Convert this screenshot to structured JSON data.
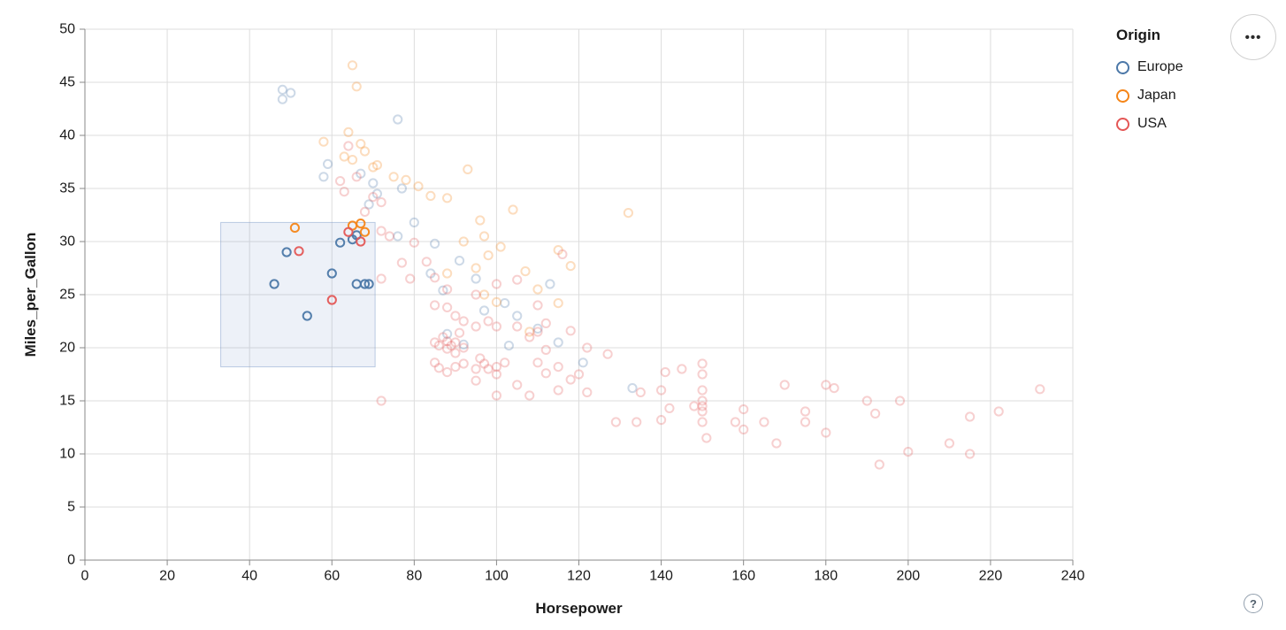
{
  "ui": {
    "menu_icon": "•••",
    "help_icon": "?"
  },
  "chart_data": {
    "type": "scatter",
    "title": "",
    "xlabel": "Horsepower",
    "ylabel": "Miles_per_Gallon",
    "xlim": [
      0,
      240
    ],
    "ylim": [
      0,
      50
    ],
    "xticks": [
      0,
      20,
      40,
      60,
      80,
      100,
      120,
      140,
      160,
      180,
      200,
      220,
      240
    ],
    "yticks": [
      0,
      5,
      10,
      15,
      20,
      25,
      30,
      35,
      40,
      45,
      50
    ],
    "grid": true,
    "point_style": {
      "shape": "open-circle",
      "radius": 4.6,
      "stroke_width": 2,
      "faded_opacity": 0.28,
      "selected_opacity": 0.95
    },
    "legend": {
      "title": "Origin",
      "position": "top-right",
      "entries": [
        {
          "label": "Europe",
          "color": "#4c78a8"
        },
        {
          "label": "Japan",
          "color": "#f58518"
        },
        {
          "label": "USA",
          "color": "#e45756"
        }
      ]
    },
    "brush": {
      "x": [
        33,
        70.5
      ],
      "y": [
        18.2,
        31.8
      ],
      "fill": "#6a8fc8",
      "fill_opacity": 0.12,
      "stroke": "#7d9bc9",
      "stroke_opacity": 0.5
    },
    "series": [
      {
        "name": "Europe",
        "color": "#4c78a8",
        "selected": [
          [
            46,
            26
          ],
          [
            49,
            29
          ],
          [
            54,
            23
          ],
          [
            60,
            27
          ],
          [
            62,
            29.9
          ],
          [
            65,
            30.2
          ],
          [
            66,
            30.6
          ],
          [
            66,
            26
          ],
          [
            68,
            26
          ],
          [
            69,
            26
          ]
        ],
        "unselected": [
          [
            48,
            44.3
          ],
          [
            48,
            43.4
          ],
          [
            50,
            44
          ],
          [
            76,
            41.5
          ],
          [
            58,
            36.1
          ],
          [
            59,
            37.3
          ],
          [
            67,
            36.4
          ],
          [
            70,
            35.5
          ],
          [
            71,
            34.5
          ],
          [
            69,
            33.5
          ],
          [
            77,
            35
          ],
          [
            80,
            31.8
          ],
          [
            85,
            29.8
          ],
          [
            91,
            28.2
          ],
          [
            95,
            26.5
          ],
          [
            113,
            26
          ],
          [
            97,
            23.5
          ],
          [
            102,
            24.2
          ],
          [
            105,
            23
          ],
          [
            110,
            21.8
          ],
          [
            115,
            20.5
          ],
          [
            103,
            20.2
          ],
          [
            88,
            21.3
          ],
          [
            92,
            20.3
          ],
          [
            121,
            18.6
          ],
          [
            133,
            16.2
          ],
          [
            87,
            25.4
          ],
          [
            76,
            30.5
          ],
          [
            84,
            27
          ]
        ]
      },
      {
        "name": "Japan",
        "color": "#f58518",
        "selected": [
          [
            51,
            31.3
          ],
          [
            65,
            31.5
          ],
          [
            67,
            31.7
          ],
          [
            68,
            30.9
          ]
        ],
        "unselected": [
          [
            65,
            46.6
          ],
          [
            66,
            44.6
          ],
          [
            58,
            39.4
          ],
          [
            64,
            40.3
          ],
          [
            67,
            39.2
          ],
          [
            63,
            38
          ],
          [
            65,
            37.7
          ],
          [
            68,
            38.5
          ],
          [
            70,
            37
          ],
          [
            71,
            37.2
          ],
          [
            75,
            36.1
          ],
          [
            78,
            35.8
          ],
          [
            81,
            35.2
          ],
          [
            84,
            34.3
          ],
          [
            88,
            34.1
          ],
          [
            93,
            36.8
          ],
          [
            104,
            33
          ],
          [
            96,
            32
          ],
          [
            97,
            30.5
          ],
          [
            92,
            30
          ],
          [
            101,
            29.5
          ],
          [
            98,
            28.7
          ],
          [
            95,
            27.5
          ],
          [
            107,
            27.2
          ],
          [
            88,
            27
          ],
          [
            110,
            25.5
          ],
          [
            97,
            25
          ],
          [
            100,
            24.3
          ],
          [
            115,
            24.2
          ],
          [
            108,
            21.5
          ],
          [
            118,
            27.7
          ],
          [
            132,
            32.7
          ],
          [
            115,
            29.2
          ]
        ]
      },
      {
        "name": "USA",
        "color": "#e45756",
        "selected": [
          [
            52,
            29.1
          ],
          [
            60,
            24.5
          ],
          [
            64,
            30.9
          ],
          [
            67,
            30
          ]
        ],
        "unselected": [
          [
            64,
            39
          ],
          [
            62,
            35.7
          ],
          [
            63,
            34.7
          ],
          [
            66,
            36.1
          ],
          [
            70,
            34.2
          ],
          [
            72,
            33.7
          ],
          [
            68,
            32.8
          ],
          [
            72,
            31
          ],
          [
            74,
            30.5
          ],
          [
            77,
            28
          ],
          [
            79,
            26.5
          ],
          [
            80,
            29.9
          ],
          [
            83,
            28.1
          ],
          [
            85,
            26.6
          ],
          [
            72,
            26.5
          ],
          [
            72,
            15
          ],
          [
            85,
            24
          ],
          [
            88,
            23.8
          ],
          [
            90,
            23
          ],
          [
            92,
            22.5
          ],
          [
            95,
            22
          ],
          [
            98,
            22.5
          ],
          [
            100,
            22
          ],
          [
            88,
            25.5
          ],
          [
            95,
            25
          ],
          [
            100,
            26
          ],
          [
            105,
            26.4
          ],
          [
            85,
            20.5
          ],
          [
            86,
            20.2
          ],
          [
            87,
            21
          ],
          [
            88,
            19.9
          ],
          [
            88,
            20.6
          ],
          [
            89,
            20.2
          ],
          [
            90,
            20.5
          ],
          [
            90,
            19.5
          ],
          [
            91,
            21.4
          ],
          [
            92,
            20
          ],
          [
            85,
            18.6
          ],
          [
            86,
            18.1
          ],
          [
            88,
            17.7
          ],
          [
            90,
            18.2
          ],
          [
            92,
            18.5
          ],
          [
            95,
            18
          ],
          [
            96,
            19
          ],
          [
            97,
            18.5
          ],
          [
            98,
            18
          ],
          [
            100,
            18.2
          ],
          [
            100,
            17.5
          ],
          [
            102,
            18.6
          ],
          [
            95,
            16.9
          ],
          [
            100,
            15.5
          ],
          [
            105,
            22
          ],
          [
            108,
            21
          ],
          [
            110,
            21.5
          ],
          [
            112,
            19.8
          ],
          [
            110,
            18.6
          ],
          [
            115,
            18.2
          ],
          [
            112,
            17.6
          ],
          [
            118,
            17
          ],
          [
            105,
            16.5
          ],
          [
            108,
            15.5
          ],
          [
            115,
            16
          ],
          [
            122,
            15.8
          ],
          [
            120,
            17.5
          ],
          [
            110,
            24
          ],
          [
            112,
            22.3
          ],
          [
            118,
            21.6
          ],
          [
            122,
            20
          ],
          [
            127,
            19.4
          ],
          [
            116,
            28.8
          ],
          [
            129,
            13
          ],
          [
            134,
            13
          ],
          [
            140,
            13.2
          ],
          [
            135,
            15.8
          ],
          [
            141,
            17.7
          ],
          [
            145,
            18
          ],
          [
            140,
            16
          ],
          [
            142,
            14.3
          ],
          [
            148,
            14.5
          ],
          [
            150,
            13
          ],
          [
            150,
            14
          ],
          [
            150,
            14.5
          ],
          [
            150,
            15
          ],
          [
            150,
            16
          ],
          [
            150,
            17.5
          ],
          [
            150,
            18.5
          ],
          [
            151,
            11.5
          ],
          [
            158,
            13
          ],
          [
            160,
            14.2
          ],
          [
            160,
            12.3
          ],
          [
            165,
            13
          ],
          [
            168,
            11
          ],
          [
            170,
            16.5
          ],
          [
            175,
            14
          ],
          [
            175,
            13
          ],
          [
            180,
            16.5
          ],
          [
            182,
            16.2
          ],
          [
            180,
            12
          ],
          [
            190,
            15
          ],
          [
            192,
            13.8
          ],
          [
            198,
            15
          ],
          [
            193,
            9
          ],
          [
            200,
            10.2
          ],
          [
            210,
            11
          ],
          [
            215,
            10
          ],
          [
            215,
            13.5
          ],
          [
            222,
            14
          ],
          [
            232,
            16.1
          ]
        ]
      }
    ]
  }
}
